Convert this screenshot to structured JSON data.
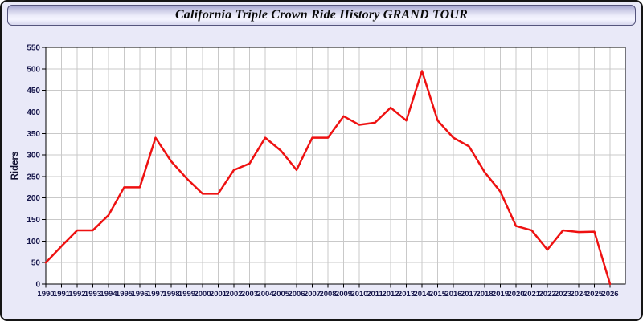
{
  "window": {
    "title": "California Triple Crown Ride History GRAND TOUR"
  },
  "chart_data": {
    "type": "line",
    "title": "California Triple Crown Ride History GRAND TOUR",
    "xlabel": "",
    "ylabel": "Riders",
    "ylim": [
      0,
      550
    ],
    "ytick_step": 50,
    "grid": true,
    "legend_position": "none",
    "years": [
      1990,
      1991,
      1992,
      1993,
      1994,
      1995,
      1996,
      1997,
      1998,
      1999,
      2000,
      2001,
      2002,
      2003,
      2004,
      2005,
      2006,
      2007,
      2008,
      2009,
      2010,
      2011,
      2012,
      2013,
      2014,
      2015,
      2016,
      2017,
      2018,
      2019,
      2020,
      2021,
      2022,
      2023,
      2024,
      2025,
      2026
    ],
    "series": [
      {
        "name": "Riders",
        "values": [
          50,
          88,
          125,
          125,
          160,
          225,
          225,
          340,
          285,
          245,
          210,
          210,
          265,
          280,
          340,
          310,
          265,
          340,
          340,
          390,
          370,
          375,
          410,
          380,
          495,
          380,
          340,
          320,
          260,
          215,
          135,
          125,
          80,
          125,
          121,
          122,
          0
        ]
      }
    ]
  },
  "colors": {
    "window_bg": "#e9e9f8",
    "plot_bg": "#ffffff",
    "gridline": "#c9c9c9",
    "axis": "#000000",
    "tick_label": "#15154a",
    "line": "#ee1111"
  }
}
